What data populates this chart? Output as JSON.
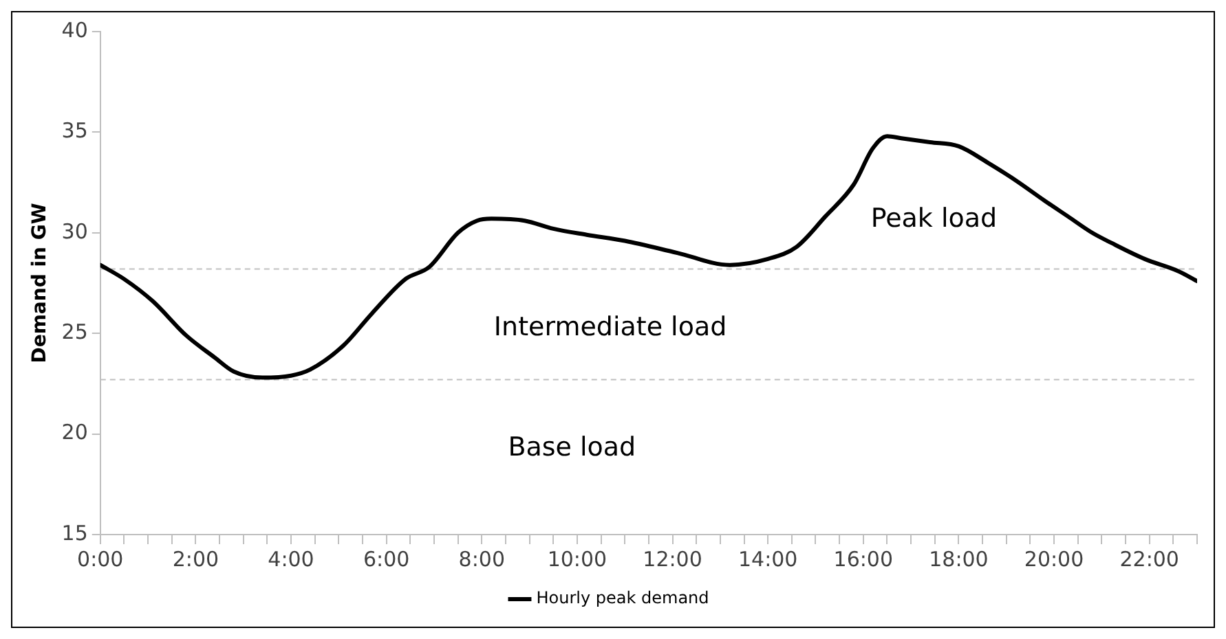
{
  "chart_data": {
    "type": "line",
    "ylabel": "Demand in GW",
    "legend": "bottom",
    "marker": "none",
    "line_style": "solid",
    "x": [
      0,
      0.5,
      1.1,
      1.8,
      2.4,
      2.8,
      3.4,
      4.0,
      4.4,
      5.1,
      5.7,
      6.4,
      6.9,
      7.5,
      7.9,
      8.2,
      8.9,
      9.5,
      10.2,
      11.0,
      12.1,
      13.2,
      14.0,
      14.6,
      15.2,
      15.8,
      16.2,
      16.5,
      16.8,
      17.4,
      18.0,
      18.6,
      19.2,
      19.8,
      20.3,
      20.8,
      21.2,
      21.9,
      22.6,
      23.0
    ],
    "series": [
      {
        "name": "Hourly peak demand",
        "color": "#000000",
        "values": [
          28.4,
          27.7,
          26.6,
          24.9,
          23.8,
          23.1,
          22.8,
          22.9,
          23.2,
          24.4,
          26.0,
          27.7,
          28.3,
          30.0,
          30.6,
          30.7,
          30.6,
          30.2,
          29.9,
          29.6,
          29.0,
          28.4,
          28.7,
          29.3,
          30.8,
          32.4,
          34.2,
          34.8,
          34.7,
          34.5,
          34.3,
          33.5,
          32.6,
          31.6,
          30.8,
          30.0,
          29.5,
          28.7,
          28.1,
          27.6
        ]
      }
    ],
    "xlim": [
      0,
      23
    ],
    "xticks": [
      {
        "value": 0,
        "label": "0:00"
      },
      {
        "value": 0.5,
        "label": null
      },
      {
        "value": 1,
        "label": null
      },
      {
        "value": 1.5,
        "label": null
      },
      {
        "value": 2,
        "label": "2:00"
      },
      {
        "value": 2.5,
        "label": null
      },
      {
        "value": 3,
        "label": null
      },
      {
        "value": 3.5,
        "label": null
      },
      {
        "value": 4,
        "label": "4:00"
      },
      {
        "value": 4.5,
        "label": null
      },
      {
        "value": 5,
        "label": null
      },
      {
        "value": 5.5,
        "label": null
      },
      {
        "value": 6,
        "label": "6:00"
      },
      {
        "value": 6.5,
        "label": null
      },
      {
        "value": 7,
        "label": null
      },
      {
        "value": 7.5,
        "label": null
      },
      {
        "value": 8,
        "label": "8:00"
      },
      {
        "value": 8.5,
        "label": null
      },
      {
        "value": 9,
        "label": null
      },
      {
        "value": 9.5,
        "label": null
      },
      {
        "value": 10,
        "label": "10:00"
      },
      {
        "value": 10.5,
        "label": null
      },
      {
        "value": 11,
        "label": null
      },
      {
        "value": 11.5,
        "label": null
      },
      {
        "value": 12,
        "label": "12:00"
      },
      {
        "value": 12.5,
        "label": null
      },
      {
        "value": 13,
        "label": null
      },
      {
        "value": 13.5,
        "label": null
      },
      {
        "value": 14,
        "label": "14:00"
      },
      {
        "value": 14.5,
        "label": null
      },
      {
        "value": 15,
        "label": null
      },
      {
        "value": 15.5,
        "label": null
      },
      {
        "value": 16,
        "label": "16:00"
      },
      {
        "value": 16.5,
        "label": null
      },
      {
        "value": 17,
        "label": null
      },
      {
        "value": 17.5,
        "label": null
      },
      {
        "value": 18,
        "label": "18:00"
      },
      {
        "value": 18.5,
        "label": null
      },
      {
        "value": 19,
        "label": null
      },
      {
        "value": 19.5,
        "label": null
      },
      {
        "value": 20,
        "label": "20:00"
      },
      {
        "value": 20.5,
        "label": null
      },
      {
        "value": 21,
        "label": null
      },
      {
        "value": 21.5,
        "label": null
      },
      {
        "value": 22,
        "label": "22:00"
      },
      {
        "value": 22.5,
        "label": null
      },
      {
        "value": 23,
        "label": null
      }
    ],
    "ylim": [
      15,
      40
    ],
    "yticks": [
      15,
      20,
      25,
      30,
      35,
      40
    ],
    "ref_lines": [
      {
        "axis": "y",
        "value": 28.2,
        "color": "#bfbfbf",
        "line_style": "dashed"
      },
      {
        "axis": "y",
        "value": 22.7,
        "color": "#bfbfbf",
        "line_style": "dashed"
      }
    ],
    "annotations": [
      "Peak load",
      "Intermediate load",
      "Base load"
    ]
  }
}
